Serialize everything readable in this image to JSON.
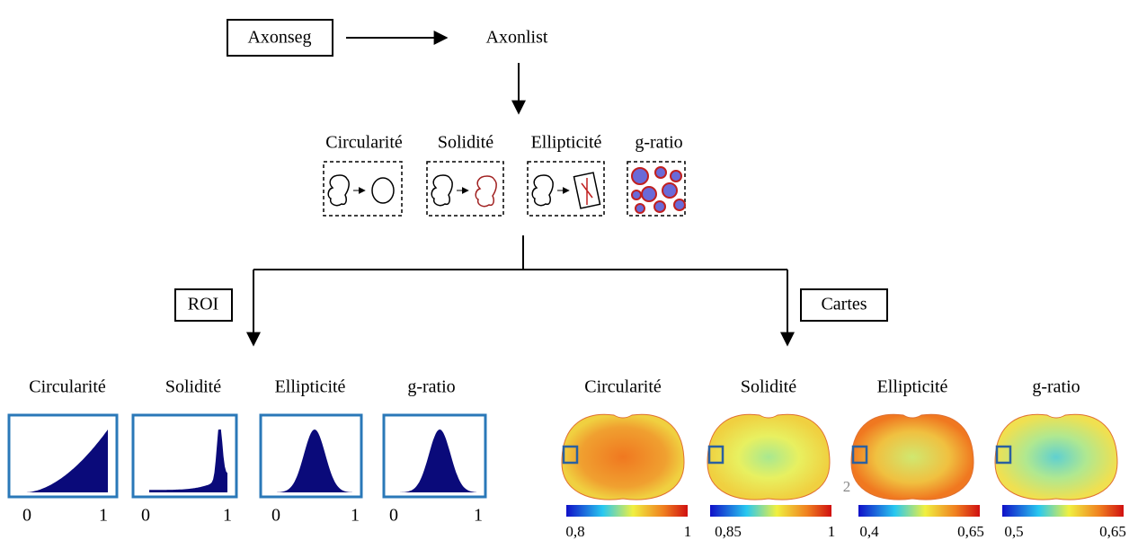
{
  "flow": {
    "source": "Axonseg",
    "target": "Axonlist"
  },
  "metrics": [
    "Circularité",
    "Solidité",
    "Ellipticité",
    "g-ratio"
  ],
  "roi": {
    "label": "ROI",
    "panels": [
      {
        "title": "Circularité",
        "axis_min": "0",
        "axis_max": "1"
      },
      {
        "title": "Solidité",
        "axis_min": "0",
        "axis_max": "1"
      },
      {
        "title": "Ellipticité",
        "axis_min": "0",
        "axis_max": "1"
      },
      {
        "title": "g-ratio",
        "axis_min": "0",
        "axis_max": "1"
      }
    ]
  },
  "maps": {
    "label": "Cartes",
    "marker": "2",
    "panels": [
      {
        "title": "Circularité",
        "scale_min": "0,8",
        "scale_max": "1"
      },
      {
        "title": "Solidité",
        "scale_min": "0,85",
        "scale_max": "1"
      },
      {
        "title": "Ellipticité",
        "scale_min": "0,4",
        "scale_max": "0,65"
      },
      {
        "title": "g-ratio",
        "scale_min": "0,5",
        "scale_max": "0,65"
      }
    ]
  }
}
